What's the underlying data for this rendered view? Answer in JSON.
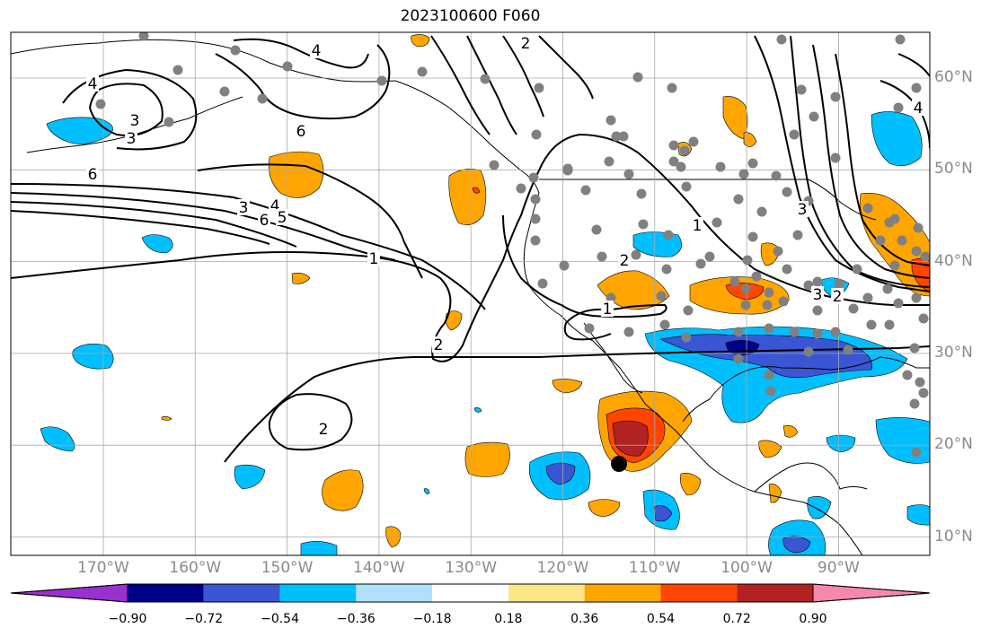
{
  "title": "2023100600 F060",
  "lon_labels": [
    {
      "lon": -170,
      "label": "170°W"
    },
    {
      "lon": -160,
      "label": "160°W"
    },
    {
      "lon": -150,
      "label": "150°W"
    },
    {
      "lon": -140,
      "label": "140°W"
    },
    {
      "lon": -130,
      "label": "130°W"
    },
    {
      "lon": -120,
      "label": "120°W"
    },
    {
      "lon": -110,
      "label": "110°W"
    },
    {
      "lon": -100,
      "label": "100°W"
    },
    {
      "lon": -90,
      "label": "90°W"
    }
  ],
  "lat_labels": [
    {
      "lat": 60,
      "label": "60°N"
    },
    {
      "lat": 50,
      "label": "50°N"
    },
    {
      "lat": 40,
      "label": "40°N"
    },
    {
      "lat": 30,
      "label": "30°N"
    },
    {
      "lat": 20,
      "label": "20°N"
    },
    {
      "lat": 10,
      "label": "10°N"
    }
  ],
  "colorbar": {
    "bins": [
      {
        "color": "#9b30d0"
      },
      {
        "color": "#00008b"
      },
      {
        "color": "#3a56d4"
      },
      {
        "color": "#00bfff"
      },
      {
        "color": "#b0e0fa"
      },
      {
        "color": "#ffffff"
      },
      {
        "color": "#fde58a"
      },
      {
        "color": "#ffa500"
      },
      {
        "color": "#ff4500"
      },
      {
        "color": "#b22222"
      },
      {
        "color": "#f888aa"
      }
    ],
    "tick_labels": [
      "−0.90",
      "−0.72",
      "−0.54",
      "−0.36",
      "−0.18",
      "0.18",
      "0.36",
      "0.54",
      "0.72",
      "0.90"
    ]
  },
  "contour_labels": [
    "4",
    "3",
    "3",
    "6",
    "6",
    "4",
    "3",
    "6",
    "5",
    "4",
    "2",
    "1",
    "2",
    "2",
    "1",
    "2",
    "1",
    "3",
    "2",
    "3",
    "4"
  ],
  "colors": {
    "grid": "#a8a8a8",
    "station_dot": "#808080",
    "contour": "#000000"
  }
}
